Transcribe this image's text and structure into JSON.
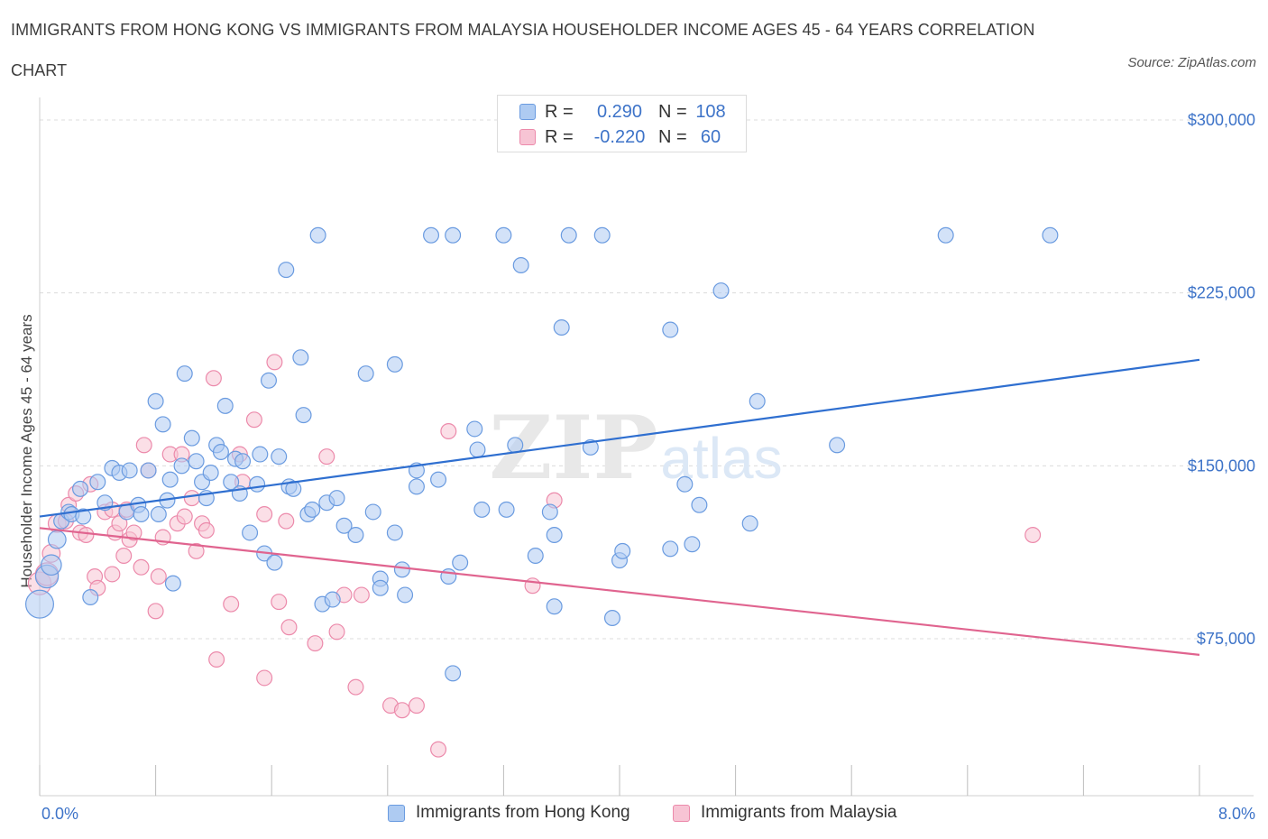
{
  "title": "IMMIGRANTS FROM HONG KONG VS IMMIGRANTS FROM MALAYSIA HOUSEHOLDER INCOME AGES 45 - 64 YEARS CORRELATION",
  "title_line2": "CHART",
  "source": "Source: ZipAtlas.com",
  "watermark": {
    "zip": "ZIP",
    "atlas": "atlas"
  },
  "colors": {
    "hk_fill": "#aecbf2",
    "hk_stroke": "#6a9be0",
    "hk_line": "#2f6fd0",
    "my_fill": "#f7c4d4",
    "my_stroke": "#ec8aab",
    "my_line": "#e0648f",
    "tick_text": "#3d73c8",
    "grid": "#dcdcdc"
  },
  "legend_top": {
    "r_label": "R =",
    "n_label": "N =",
    "hk": {
      "r": "0.290",
      "n": "108"
    },
    "my": {
      "r": "-0.220",
      "n": "60"
    }
  },
  "legend_bottom": {
    "hk": "Immigrants from Hong Kong",
    "my": "Immigrants from Malaysia"
  },
  "chart_data": {
    "type": "scatter",
    "title": "IMMIGRANTS FROM HONG KONG VS IMMIGRANTS FROM MALAYSIA HOUSEHOLDER INCOME AGES 45 - 64 YEARS CORRELATION CHART",
    "xlabel": "",
    "ylabel": "Householder Income Ages 45 - 64 years",
    "xlim": [
      0,
      8.0
    ],
    "ylim": [
      0,
      310000
    ],
    "x_unit": "%",
    "grid": true,
    "legend_placement": "top-center and bottom",
    "y_ticks": [
      {
        "value": 75000,
        "label": "$75,000"
      },
      {
        "value": 150000,
        "label": "$150,000"
      },
      {
        "value": 225000,
        "label": "$225,000"
      },
      {
        "value": 300000,
        "label": "$300,000"
      }
    ],
    "x_ticks": [
      {
        "value": 0,
        "label": "0.0%"
      },
      {
        "value": 8.0,
        "label": "8.0%"
      }
    ],
    "series": [
      {
        "name": "Immigrants from Hong Kong",
        "color": "#6a9be0",
        "trend": {
          "x": [
            0.0,
            8.0
          ],
          "y": [
            128000,
            196000
          ]
        },
        "points": [
          [
            0.0,
            90000,
            11
          ],
          [
            0.05,
            102000,
            9
          ],
          [
            0.08,
            107000,
            8
          ],
          [
            0.12,
            118000,
            7
          ],
          [
            0.15,
            126000,
            6
          ],
          [
            0.2,
            130000,
            6
          ],
          [
            0.22,
            129000,
            6
          ],
          [
            0.28,
            140000,
            6
          ],
          [
            0.3,
            128000,
            6
          ],
          [
            0.35,
            93000,
            6
          ],
          [
            0.4,
            143000,
            6
          ],
          [
            0.45,
            134000,
            6
          ],
          [
            0.5,
            149000,
            6
          ],
          [
            0.55,
            147000,
            6
          ],
          [
            0.6,
            130000,
            6
          ],
          [
            0.62,
            148000,
            6
          ],
          [
            0.68,
            133000,
            6
          ],
          [
            0.7,
            129000,
            6
          ],
          [
            0.75,
            148000,
            6
          ],
          [
            0.8,
            178000,
            6
          ],
          [
            0.82,
            129000,
            6
          ],
          [
            0.85,
            168000,
            6
          ],
          [
            0.88,
            135000,
            6
          ],
          [
            0.9,
            144000,
            6
          ],
          [
            0.92,
            99000,
            6
          ],
          [
            0.98,
            150000,
            6
          ],
          [
            1.0,
            190000,
            6
          ],
          [
            1.05,
            162000,
            6
          ],
          [
            1.08,
            152000,
            6
          ],
          [
            1.12,
            143000,
            6
          ],
          [
            1.15,
            136000,
            6
          ],
          [
            1.18,
            147000,
            6
          ],
          [
            1.22,
            159000,
            6
          ],
          [
            1.25,
            156000,
            6
          ],
          [
            1.28,
            176000,
            6
          ],
          [
            1.32,
            143000,
            6
          ],
          [
            1.35,
            153000,
            6
          ],
          [
            1.38,
            138000,
            6
          ],
          [
            1.4,
            152000,
            6
          ],
          [
            1.45,
            121000,
            6
          ],
          [
            1.5,
            142000,
            6
          ],
          [
            1.52,
            155000,
            6
          ],
          [
            1.55,
            112000,
            6
          ],
          [
            1.58,
            187000,
            6
          ],
          [
            1.62,
            108000,
            6
          ],
          [
            1.65,
            154000,
            6
          ],
          [
            1.7,
            235000,
            6
          ],
          [
            1.72,
            141000,
            6
          ],
          [
            1.75,
            140000,
            6
          ],
          [
            1.8,
            197000,
            6
          ],
          [
            1.82,
            172000,
            6
          ],
          [
            1.85,
            129000,
            6
          ],
          [
            1.88,
            131000,
            6
          ],
          [
            1.92,
            250000,
            6
          ],
          [
            1.95,
            90000,
            6
          ],
          [
            1.98,
            134000,
            6
          ],
          [
            2.02,
            92000,
            6
          ],
          [
            2.05,
            136000,
            6
          ],
          [
            2.1,
            124000,
            6
          ],
          [
            2.18,
            120000,
            6
          ],
          [
            2.25,
            190000,
            6
          ],
          [
            2.3,
            130000,
            6
          ],
          [
            2.35,
            101000,
            6
          ],
          [
            2.35,
            97000,
            6
          ],
          [
            2.45,
            194000,
            6
          ],
          [
            2.45,
            121000,
            6
          ],
          [
            2.5,
            105000,
            6
          ],
          [
            2.52,
            94000,
            6
          ],
          [
            2.6,
            148000,
            6
          ],
          [
            2.6,
            141000,
            6
          ],
          [
            2.7,
            250000,
            6
          ],
          [
            2.75,
            144000,
            6
          ],
          [
            2.82,
            102000,
            6
          ],
          [
            2.85,
            60000,
            6
          ],
          [
            2.85,
            250000,
            6
          ],
          [
            2.9,
            108000,
            6
          ],
          [
            3.0,
            166000,
            6
          ],
          [
            3.02,
            157000,
            6
          ],
          [
            3.05,
            131000,
            6
          ],
          [
            3.2,
            250000,
            6
          ],
          [
            3.22,
            131000,
            6
          ],
          [
            3.28,
            159000,
            6
          ],
          [
            3.32,
            237000,
            6
          ],
          [
            3.42,
            111000,
            6
          ],
          [
            3.52,
            130000,
            6
          ],
          [
            3.55,
            120000,
            6
          ],
          [
            3.55,
            89000,
            6
          ],
          [
            3.6,
            210000,
            6
          ],
          [
            3.65,
            250000,
            6
          ],
          [
            3.8,
            158000,
            6
          ],
          [
            3.88,
            250000,
            6
          ],
          [
            3.95,
            84000,
            6
          ],
          [
            4.0,
            109000,
            6
          ],
          [
            4.02,
            113000,
            6
          ],
          [
            4.35,
            114000,
            6
          ],
          [
            4.35,
            209000,
            6
          ],
          [
            4.45,
            142000,
            6
          ],
          [
            4.5,
            116000,
            6
          ],
          [
            4.55,
            133000,
            6
          ],
          [
            4.7,
            226000,
            6
          ],
          [
            4.9,
            125000,
            6
          ],
          [
            4.95,
            178000,
            6
          ],
          [
            5.5,
            159000,
            6
          ],
          [
            6.25,
            250000,
            6
          ],
          [
            6.97,
            250000,
            6
          ]
        ]
      },
      {
        "name": "Immigrants from Malaysia",
        "color": "#ec8aab",
        "trend": {
          "x": [
            0.0,
            8.0
          ],
          "y": [
            123000,
            68000
          ]
        },
        "points": [
          [
            0.0,
            99000,
            9
          ],
          [
            0.05,
            103000,
            9
          ],
          [
            0.08,
            112000,
            7
          ],
          [
            0.12,
            125000,
            7
          ],
          [
            0.18,
            126000,
            6
          ],
          [
            0.2,
            133000,
            6
          ],
          [
            0.25,
            138000,
            6
          ],
          [
            0.28,
            121000,
            6
          ],
          [
            0.32,
            120000,
            6
          ],
          [
            0.35,
            142000,
            6
          ],
          [
            0.38,
            102000,
            6
          ],
          [
            0.4,
            97000,
            6
          ],
          [
            0.45,
            130000,
            6
          ],
          [
            0.5,
            103000,
            6
          ],
          [
            0.5,
            131000,
            6
          ],
          [
            0.52,
            121000,
            6
          ],
          [
            0.55,
            125000,
            6
          ],
          [
            0.58,
            111000,
            6
          ],
          [
            0.6,
            131000,
            6
          ],
          [
            0.62,
            118000,
            6
          ],
          [
            0.65,
            121000,
            6
          ],
          [
            0.7,
            106000,
            6
          ],
          [
            0.72,
            159000,
            6
          ],
          [
            0.75,
            148000,
            6
          ],
          [
            0.8,
            87000,
            6
          ],
          [
            0.82,
            102000,
            6
          ],
          [
            0.85,
            119000,
            6
          ],
          [
            0.9,
            155000,
            6
          ],
          [
            0.95,
            125000,
            6
          ],
          [
            0.98,
            155000,
            6
          ],
          [
            1.0,
            128000,
            6
          ],
          [
            1.05,
            136000,
            6
          ],
          [
            1.08,
            113000,
            6
          ],
          [
            1.12,
            125000,
            6
          ],
          [
            1.15,
            122000,
            6
          ],
          [
            1.2,
            188000,
            6
          ],
          [
            1.22,
            66000,
            6
          ],
          [
            1.32,
            90000,
            6
          ],
          [
            1.38,
            155000,
            6
          ],
          [
            1.4,
            143000,
            6
          ],
          [
            1.48,
            170000,
            6
          ],
          [
            1.55,
            58000,
            6
          ],
          [
            1.55,
            129000,
            6
          ],
          [
            1.62,
            195000,
            6
          ],
          [
            1.65,
            91000,
            6
          ],
          [
            1.7,
            126000,
            6
          ],
          [
            1.72,
            80000,
            6
          ],
          [
            1.9,
            73000,
            6
          ],
          [
            1.98,
            154000,
            6
          ],
          [
            2.05,
            78000,
            6
          ],
          [
            2.1,
            94000,
            6
          ],
          [
            2.18,
            54000,
            6
          ],
          [
            2.22,
            94000,
            6
          ],
          [
            2.42,
            46000,
            6
          ],
          [
            2.5,
            44000,
            6
          ],
          [
            2.6,
            46000,
            6
          ],
          [
            2.75,
            27000,
            6
          ],
          [
            2.82,
            165000,
            6
          ],
          [
            3.4,
            98000,
            6
          ],
          [
            3.55,
            135000,
            6
          ],
          [
            6.85,
            120000,
            6
          ]
        ]
      }
    ]
  }
}
